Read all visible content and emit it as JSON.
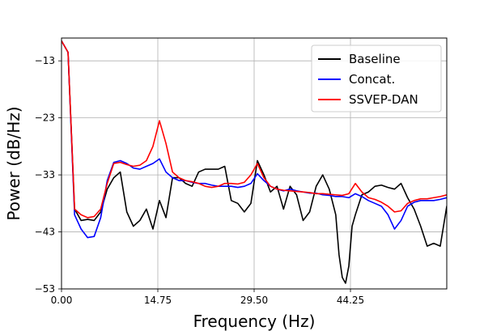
{
  "chart_data": {
    "type": "line",
    "xlabel": "Frequency (Hz)",
    "ylabel": "Power (dB/Hz)",
    "xlim": [
      0,
      59
    ],
    "ylim": [
      -53,
      -9
    ],
    "xticks": [
      0,
      14.75,
      29.5,
      44.25
    ],
    "xtick_labels": [
      "0.00",
      "14.75",
      "29.50",
      "44.25"
    ],
    "yticks": [
      -53,
      -43,
      -33,
      -23,
      -13
    ],
    "ytick_labels": [
      "−53",
      "−43",
      "−33",
      "−23",
      "−13"
    ],
    "grid": true,
    "legend_position": "top-right",
    "series": [
      {
        "name": "Baseline",
        "color": "#000000",
        "points": [
          [
            0,
            -9.5
          ],
          [
            1,
            -11.5
          ],
          [
            2,
            -39
          ],
          [
            3,
            -41
          ],
          [
            4,
            -40.8
          ],
          [
            5,
            -41
          ],
          [
            6,
            -39.5
          ],
          [
            7,
            -35.5
          ],
          [
            8,
            -33.5
          ],
          [
            9,
            -32.5
          ],
          [
            10,
            -39.5
          ],
          [
            11,
            -42
          ],
          [
            12,
            -41
          ],
          [
            13,
            -39
          ],
          [
            14,
            -42.5
          ],
          [
            15,
            -37.5
          ],
          [
            16,
            -40.5
          ],
          [
            17,
            -33.5
          ],
          [
            18,
            -33.5
          ],
          [
            19,
            -34.5
          ],
          [
            20,
            -35
          ],
          [
            21,
            -32.5
          ],
          [
            22,
            -32
          ],
          [
            23,
            -32
          ],
          [
            24,
            -32
          ],
          [
            25,
            -31.5
          ],
          [
            26,
            -37.5
          ],
          [
            27,
            -38
          ],
          [
            28,
            -39.5
          ],
          [
            29,
            -38
          ],
          [
            30,
            -30.5
          ],
          [
            31,
            -33
          ],
          [
            32,
            -36
          ],
          [
            33,
            -35
          ],
          [
            34,
            -39
          ],
          [
            35,
            -35
          ],
          [
            36,
            -36.5
          ],
          [
            37,
            -41
          ],
          [
            38,
            -39.5
          ],
          [
            39,
            -35
          ],
          [
            40,
            -33
          ],
          [
            41,
            -35.5
          ],
          [
            42,
            -40
          ],
          [
            42.5,
            -47
          ],
          [
            43,
            -51
          ],
          [
            43.5,
            -52
          ],
          [
            44,
            -49
          ],
          [
            44.5,
            -42
          ],
          [
            45,
            -40
          ],
          [
            46,
            -36.5
          ],
          [
            47,
            -36
          ],
          [
            48,
            -35
          ],
          [
            49,
            -34.8
          ],
          [
            50,
            -35.2
          ],
          [
            51,
            -35.5
          ],
          [
            52,
            -34.5
          ],
          [
            53,
            -37
          ],
          [
            54,
            -39
          ],
          [
            55,
            -42
          ],
          [
            56,
            -45.5
          ],
          [
            57,
            -45
          ],
          [
            58,
            -45.5
          ],
          [
            59,
            -38.5
          ],
          [
            60,
            -38.5
          ],
          [
            61,
            -39.5
          ]
        ]
      },
      {
        "name": "Concat.",
        "color": "#0000ff",
        "points": [
          [
            0,
            -9.5
          ],
          [
            1,
            -11.5
          ],
          [
            2,
            -40
          ],
          [
            3,
            -42.5
          ],
          [
            4,
            -44
          ],
          [
            5,
            -43.8
          ],
          [
            6,
            -40.5
          ],
          [
            7,
            -34
          ],
          [
            8,
            -30.8
          ],
          [
            9,
            -30.5
          ],
          [
            10,
            -31
          ],
          [
            11,
            -31.8
          ],
          [
            12,
            -32
          ],
          [
            13,
            -31.5
          ],
          [
            14,
            -31
          ],
          [
            15,
            -30.2
          ],
          [
            16,
            -32.5
          ],
          [
            17,
            -33.5
          ],
          [
            18,
            -34
          ],
          [
            19,
            -34
          ],
          [
            20,
            -34.3
          ],
          [
            21,
            -34.5
          ],
          [
            22,
            -34.5
          ],
          [
            23,
            -34.8
          ],
          [
            24,
            -35
          ],
          [
            25,
            -35
          ],
          [
            26,
            -35
          ],
          [
            27,
            -35.2
          ],
          [
            28,
            -35
          ],
          [
            29,
            -34.5
          ],
          [
            30,
            -32.8
          ],
          [
            31,
            -34
          ],
          [
            32,
            -35
          ],
          [
            33,
            -35.5
          ],
          [
            34,
            -35.8
          ],
          [
            35,
            -35.5
          ],
          [
            36,
            -35.8
          ],
          [
            37,
            -36
          ],
          [
            38,
            -36.2
          ],
          [
            39,
            -36.2
          ],
          [
            40,
            -36.5
          ],
          [
            41,
            -36.6
          ],
          [
            42,
            -36.8
          ],
          [
            43,
            -36.8
          ],
          [
            44,
            -37
          ],
          [
            45,
            -36.3
          ],
          [
            46,
            -36.8
          ],
          [
            47,
            -37.5
          ],
          [
            48,
            -38
          ],
          [
            49,
            -38.5
          ],
          [
            50,
            -40
          ],
          [
            51,
            -42.5
          ],
          [
            52,
            -41
          ],
          [
            53,
            -38.5
          ],
          [
            54,
            -37.8
          ],
          [
            55,
            -37.5
          ],
          [
            56,
            -37.5
          ],
          [
            57,
            -37.5
          ],
          [
            58,
            -37.3
          ],
          [
            59,
            -37
          ],
          [
            60,
            -36.8
          ],
          [
            61,
            -37
          ]
        ]
      },
      {
        "name": "SSVEP-DAN",
        "color": "#ff0000",
        "points": [
          [
            0,
            -9.5
          ],
          [
            1,
            -11.5
          ],
          [
            2,
            -39
          ],
          [
            3,
            -40
          ],
          [
            4,
            -40.5
          ],
          [
            5,
            -40.3
          ],
          [
            6,
            -39
          ],
          [
            7,
            -34.5
          ],
          [
            8,
            -31
          ],
          [
            9,
            -30.8
          ],
          [
            10,
            -31.2
          ],
          [
            11,
            -31.5
          ],
          [
            12,
            -31.3
          ],
          [
            13,
            -30.5
          ],
          [
            14,
            -28
          ],
          [
            15,
            -23.5
          ],
          [
            16,
            -27.5
          ],
          [
            17,
            -32.5
          ],
          [
            18,
            -33.5
          ],
          [
            19,
            -34
          ],
          [
            20,
            -34.2
          ],
          [
            21,
            -34.5
          ],
          [
            22,
            -35
          ],
          [
            23,
            -35.2
          ],
          [
            24,
            -35
          ],
          [
            25,
            -34.5
          ],
          [
            26,
            -34.5
          ],
          [
            27,
            -34.6
          ],
          [
            28,
            -34.3
          ],
          [
            29,
            -33
          ],
          [
            30,
            -31
          ],
          [
            31,
            -33.5
          ],
          [
            32,
            -35
          ],
          [
            33,
            -35.5
          ],
          [
            34,
            -35.7
          ],
          [
            35,
            -35.8
          ],
          [
            36,
            -35.9
          ],
          [
            37,
            -36
          ],
          [
            38,
            -36.1
          ],
          [
            39,
            -36.3
          ],
          [
            40,
            -36.3
          ],
          [
            41,
            -36.4
          ],
          [
            42,
            -36.5
          ],
          [
            43,
            -36.6
          ],
          [
            44,
            -36.3
          ],
          [
            45,
            -34.5
          ],
          [
            46,
            -36
          ],
          [
            47,
            -37
          ],
          [
            48,
            -37.3
          ],
          [
            49,
            -37.8
          ],
          [
            50,
            -38.5
          ],
          [
            51,
            -39.5
          ],
          [
            52,
            -39.3
          ],
          [
            53,
            -38
          ],
          [
            54,
            -37.5
          ],
          [
            55,
            -37.2
          ],
          [
            56,
            -37.2
          ],
          [
            57,
            -37
          ],
          [
            58,
            -36.8
          ],
          [
            59,
            -36.5
          ],
          [
            60,
            -36
          ],
          [
            61,
            -36.3
          ]
        ]
      }
    ]
  }
}
